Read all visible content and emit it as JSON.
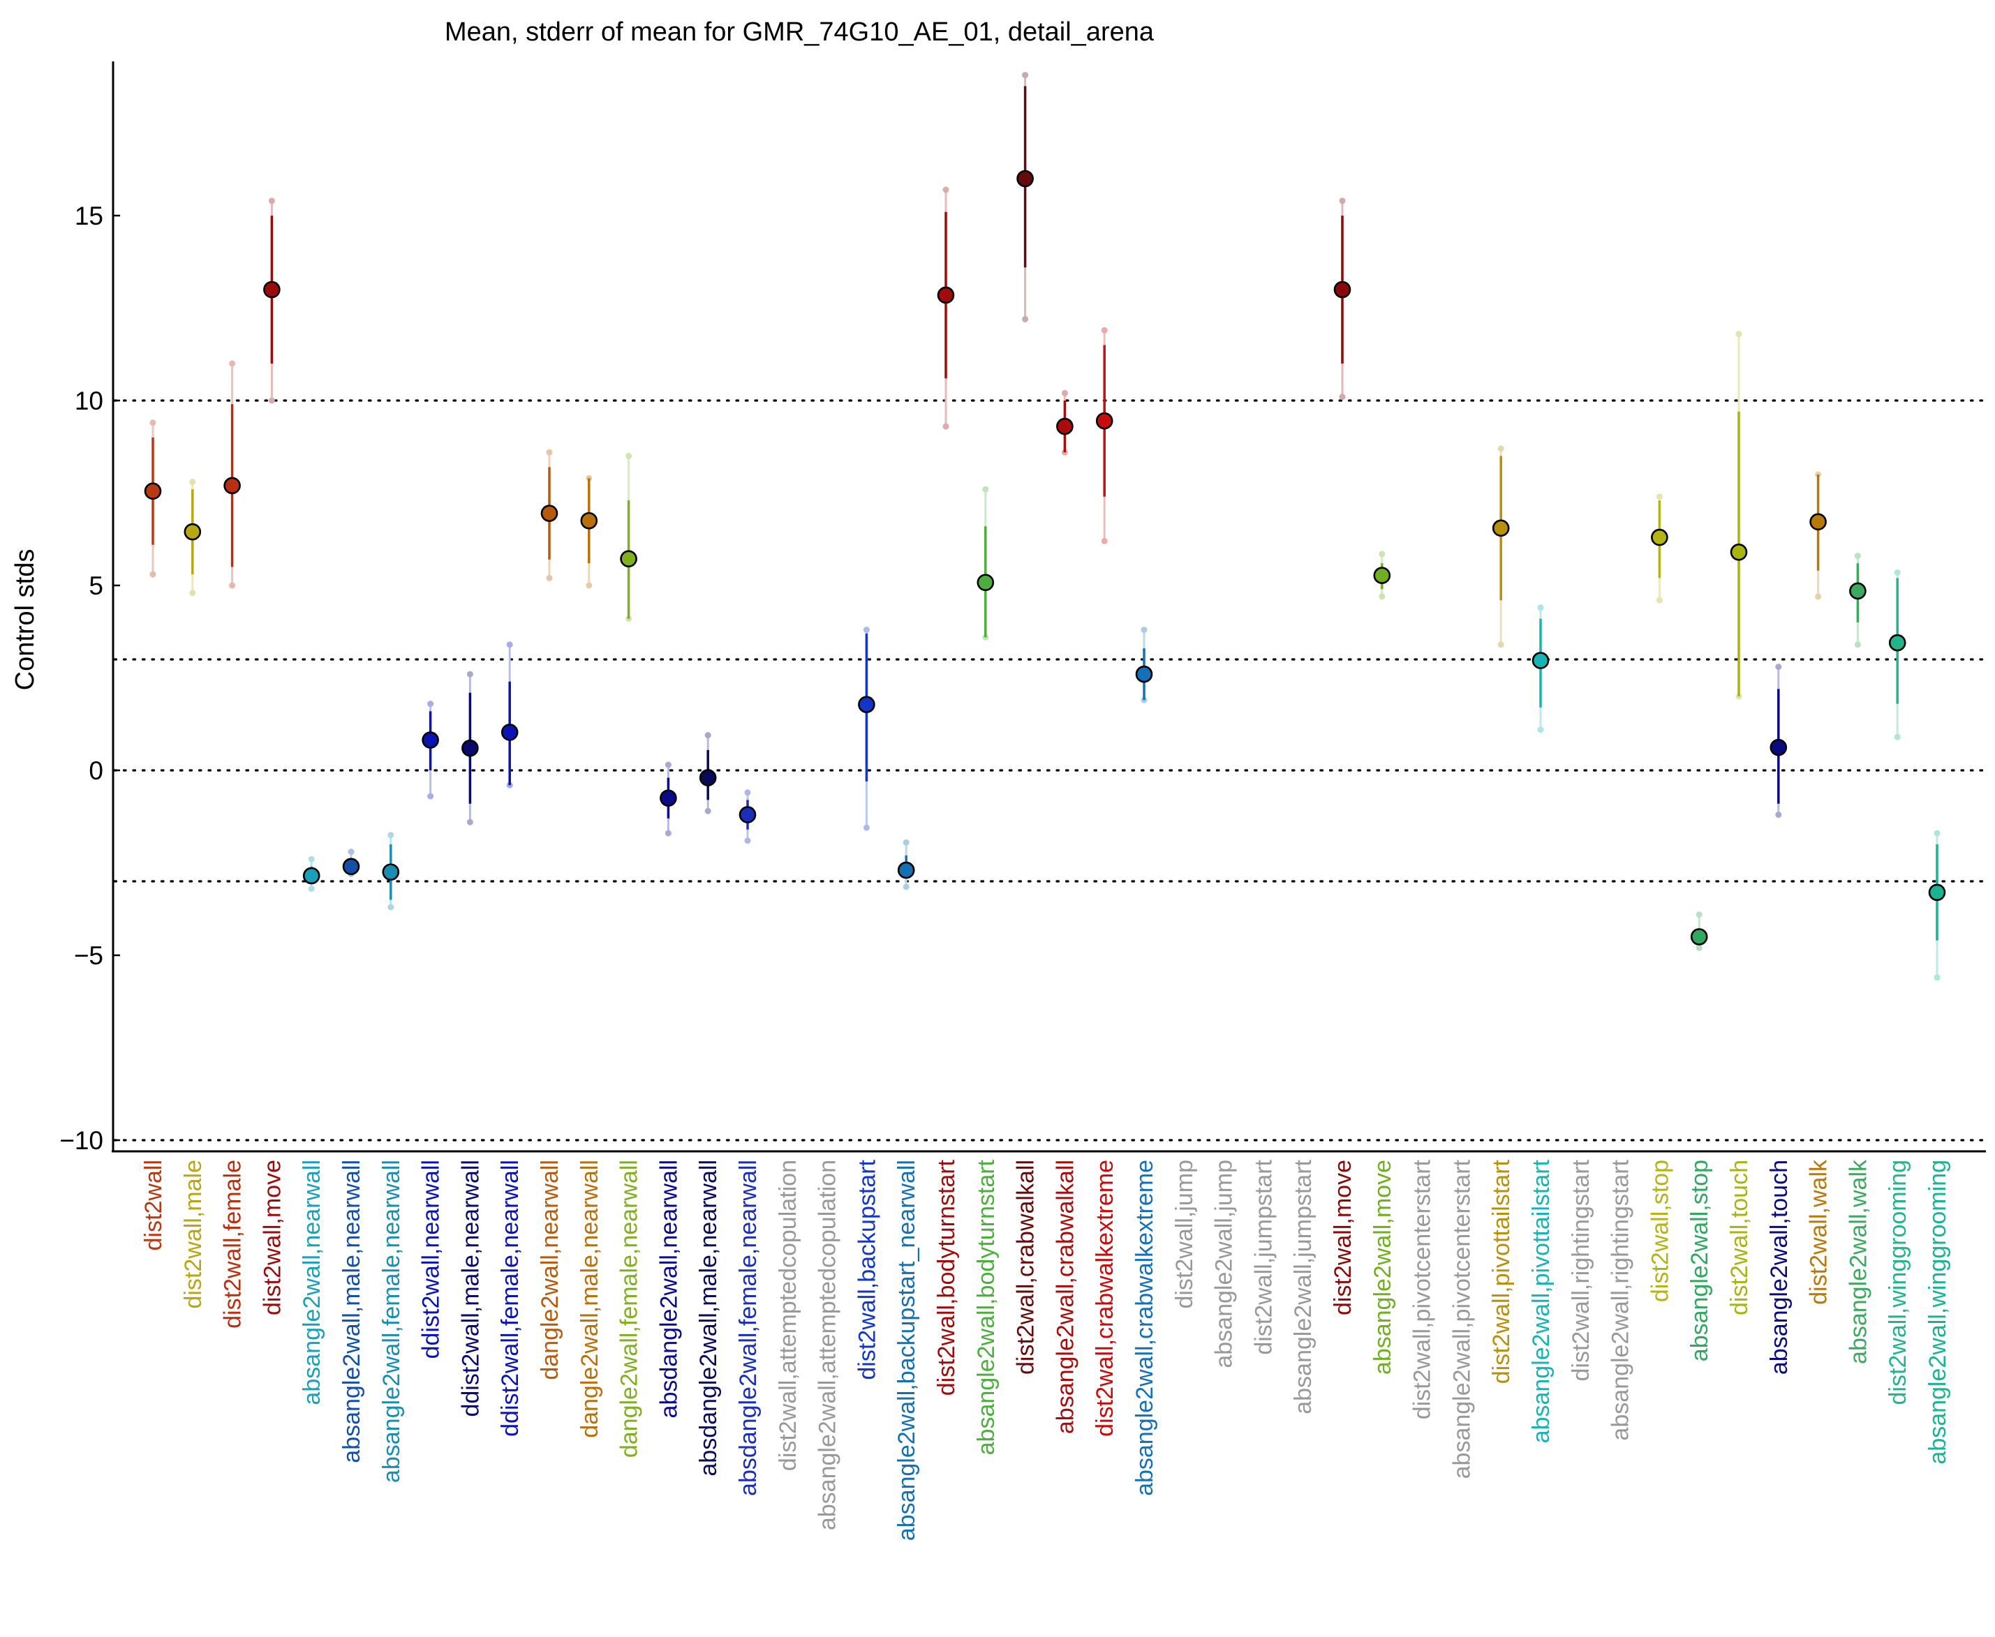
{
  "chart_data": {
    "type": "scatter",
    "title": "Mean, stderr of mean for GMR_74G10_AE_01, detail_arena",
    "xlabel": "",
    "ylabel": "Control stds",
    "ylim": [
      -10.3,
      19.2
    ],
    "yticks": [
      -10,
      -5,
      0,
      5,
      10,
      15
    ],
    "ytick_labels": [
      "−10",
      "−5",
      "0",
      "5",
      "10",
      "15"
    ],
    "reference_lines": [
      -10,
      -3,
      0,
      3,
      10
    ],
    "grid": false,
    "categories": [
      "dist2wall",
      "dist2wall,male",
      "dist2wall,female",
      "dist2wall,move",
      "absangle2wall,nearwall",
      "absangle2wall,male,nearwall",
      "absangle2wall,female,nearwall",
      "ddist2wall,nearwall",
      "ddist2wall,male,nearwall",
      "ddist2wall,female,nearwall",
      "dangle2wall,nearwall",
      "dangle2wall,male,nearwall",
      "dangle2wall,female,nearwall",
      "absdangle2wall,nearwall",
      "absdangle2wall,male,nearwall",
      "absdangle2wall,female,nearwall",
      "dist2wall,attemptedcopulation",
      "absangle2wall,attemptedcopulation",
      "dist2wall,backupstart",
      "absangle2wall,backupstart_nearwall",
      "dist2wall,bodyturnstart",
      "absangle2wall,bodyturnstart",
      "dist2wall,crabwalkall",
      "absangle2wall,crabwalkall",
      "dist2wall,crabwalkextreme",
      "absangle2wall,crabwalkextreme",
      "dist2wall,jump",
      "absangle2wall,jump",
      "dist2wall,jumpstart",
      "absangle2wall,jumpstart",
      "dist2wall,move",
      "absangle2wall,move",
      "dist2wall,pivotcenterstart",
      "absangle2wall,pivotcenterstart",
      "dist2wall,pivottailstart",
      "absangle2wall,pivottailstart",
      "dist2wall,rightingstart",
      "absangle2wall,rightingstart",
      "dist2wall,stop",
      "absangle2wall,stop",
      "dist2wall,touch",
      "absangle2wall,touch",
      "dist2wall,walk",
      "absangle2wall,walk",
      "dist2wall,winggrooming",
      "absangle2wall,winggrooming"
    ],
    "category_colors": [
      "#b83a14",
      "#b8a612",
      "#b8300f",
      "#9a0c0c",
      "#1aa0b8",
      "#1450a8",
      "#1a8eb0",
      "#0a14b4",
      "#0a0a6e",
      "#0a14b4",
      "#b85a0c",
      "#b8700a",
      "#80b020",
      "#0a0a8a",
      "#0a0a5a",
      "#1a2eb8",
      "#999999",
      "#999999",
      "#1236c8",
      "#1470b0",
      "#a00c0c",
      "#4cae3c",
      "#660a0a",
      "#aa0c0c",
      "#c80c0c",
      "#1470b8",
      "#999999",
      "#999999",
      "#999999",
      "#999999",
      "#880a0a",
      "#70b020",
      "#999999",
      "#999999",
      "#b8900c",
      "#18b4b4",
      "#999999",
      "#999999",
      "#b4b414",
      "#30a860",
      "#a8b410",
      "#0a0a80",
      "#b8780a",
      "#3ca860",
      "#24b48c",
      "#1ab494"
    ],
    "series": [
      {
        "mean": [
          7.55,
          6.45,
          7.7,
          13.0,
          -2.85,
          -2.6,
          -2.75,
          0.82,
          0.6,
          1.03,
          6.95,
          6.75,
          5.72,
          -0.75,
          -0.2,
          -1.2,
          null,
          null,
          1.78,
          -2.7,
          12.85,
          5.08,
          16.0,
          9.3,
          9.45,
          2.6,
          null,
          null,
          null,
          null,
          13.0,
          5.27,
          null,
          null,
          6.55,
          2.97,
          null,
          null,
          6.3,
          -4.5,
          5.9,
          0.62,
          6.72,
          4.85,
          3.45,
          -3.3
        ],
        "sem_low": [
          6.1,
          5.3,
          5.5,
          11.0,
          -3.0,
          -2.7,
          -3.5,
          0.0,
          -0.9,
          -0.4,
          5.7,
          5.6,
          4.1,
          -1.3,
          -0.8,
          -1.6,
          null,
          null,
          -0.3,
          -2.85,
          10.6,
          3.6,
          13.6,
          8.6,
          7.4,
          1.9,
          null,
          null,
          null,
          null,
          11.0,
          4.9,
          null,
          null,
          4.6,
          1.7,
          null,
          null,
          5.2,
          -4.7,
          2.0,
          -0.9,
          5.4,
          4.0,
          1.8,
          -4.6
        ],
        "sem_high": [
          9.0,
          7.6,
          9.9,
          15.0,
          -2.6,
          -2.5,
          -2.0,
          1.6,
          2.1,
          2.4,
          8.2,
          7.9,
          7.3,
          -0.2,
          0.55,
          -0.8,
          null,
          null,
          3.7,
          -2.3,
          15.1,
          6.6,
          18.5,
          10.0,
          11.5,
          3.3,
          null,
          null,
          null,
          null,
          15.0,
          5.6,
          null,
          null,
          8.5,
          4.1,
          null,
          null,
          7.3,
          -4.3,
          9.7,
          2.2,
          8.0,
          5.6,
          5.2,
          -2.0
        ],
        "ext_low": [
          5.3,
          4.8,
          5.0,
          10.0,
          -3.2,
          -2.8,
          -3.7,
          -0.7,
          -1.4,
          -0.4,
          5.2,
          5.0,
          4.1,
          -1.7,
          -1.1,
          -1.9,
          null,
          null,
          -1.55,
          -3.15,
          9.3,
          3.6,
          12.2,
          8.6,
          6.2,
          1.9,
          null,
          null,
          null,
          null,
          10.1,
          4.7,
          null,
          null,
          3.4,
          1.1,
          null,
          null,
          4.6,
          -4.8,
          2.0,
          -1.2,
          4.7,
          3.4,
          0.9,
          -5.6
        ],
        "ext_high": [
          9.4,
          7.8,
          11.0,
          15.4,
          -2.4,
          -2.2,
          -1.75,
          1.8,
          2.6,
          3.4,
          8.6,
          7.9,
          8.5,
          0.15,
          0.95,
          -0.6,
          null,
          null,
          3.8,
          -1.95,
          15.7,
          7.6,
          18.8,
          10.2,
          11.9,
          3.8,
          null,
          null,
          null,
          null,
          15.4,
          5.85,
          null,
          null,
          8.7,
          4.4,
          null,
          null,
          7.4,
          -3.9,
          11.8,
          2.8,
          8.0,
          5.8,
          5.35,
          -1.7
        ]
      }
    ]
  }
}
